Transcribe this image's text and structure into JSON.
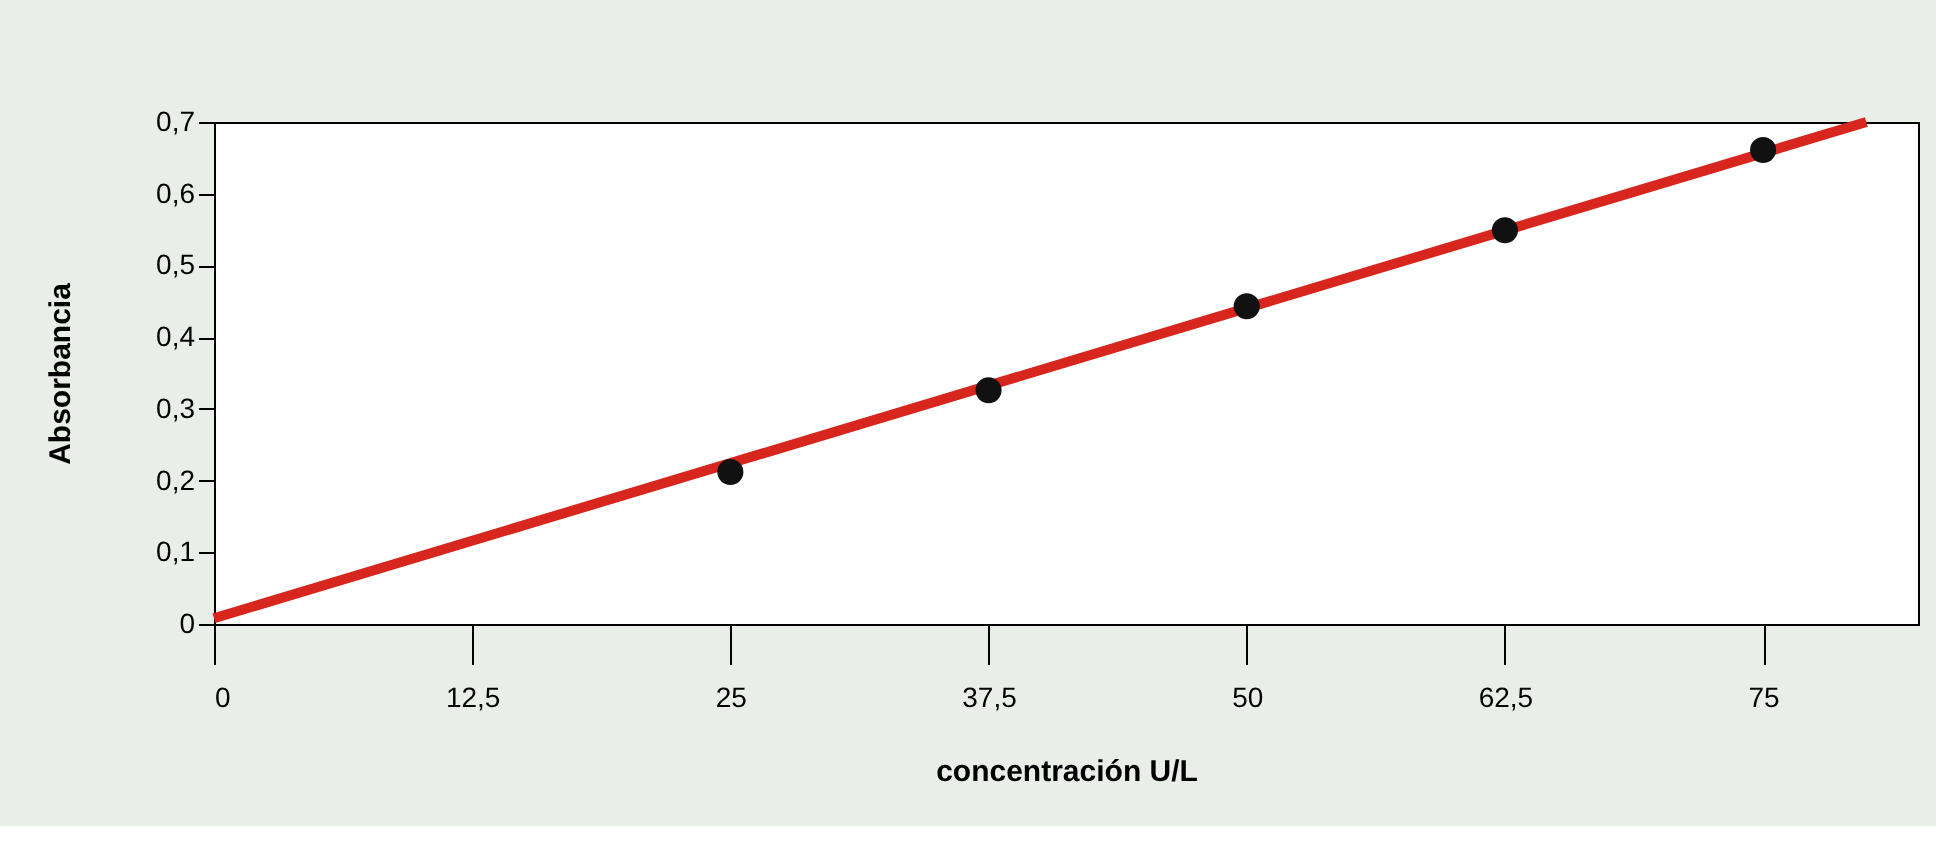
{
  "chart_data": {
    "type": "scatter",
    "xlabel": "concentración U/L",
    "ylabel": "Absorbancia",
    "xlim": [
      0,
      82.5
    ],
    "ylim": [
      0,
      0.7
    ],
    "xticks": [
      0,
      {
        "value": 12.5,
        "label": "12,5"
      },
      25,
      {
        "value": 37.5,
        "label": "37,5"
      },
      50,
      {
        "value": 62.5,
        "label": "62,5"
      },
      75
    ],
    "yticks": [
      0,
      {
        "value": 0.1,
        "label": "0,1"
      },
      {
        "value": 0.2,
        "label": "0,2"
      },
      {
        "value": 0.3,
        "label": "0,3"
      },
      {
        "value": 0.4,
        "label": "0,4"
      },
      {
        "value": 0.5,
        "label": "0,5"
      },
      {
        "value": 0.6,
        "label": "0,6"
      },
      {
        "value": 0.7,
        "label": "0,7"
      }
    ],
    "grid": false,
    "series": [
      {
        "color": "#111111",
        "marker": "circle",
        "x": [
          25,
          37.5,
          50,
          62.5,
          75
        ],
        "values": [
          0.212,
          0.326,
          0.443,
          0.549,
          0.661
        ]
      },
      {
        "type": "line",
        "color": "#d7261e",
        "marker": "none",
        "line_style": "solid",
        "x": [
          0,
          80
        ],
        "values": [
          0.008,
          0.7
        ]
      }
    ]
  }
}
